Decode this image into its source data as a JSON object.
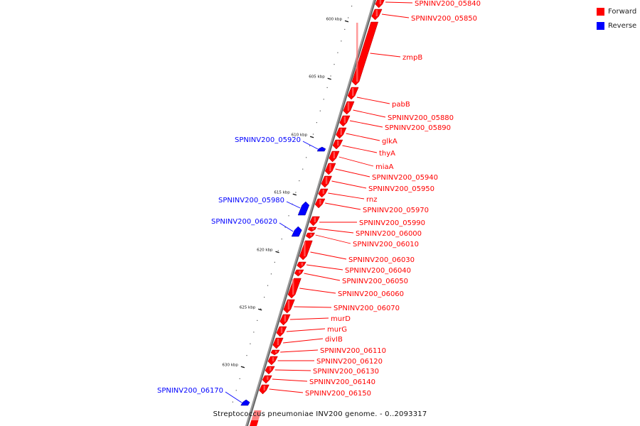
{
  "legend": {
    "forward": {
      "label": "Forward",
      "color": "#ff0000"
    },
    "reverse": {
      "label": "Reverse",
      "color": "#0000ff"
    }
  },
  "caption": "Streptococcus pneumoniae INV200 genome. - 0..2093317",
  "map": {
    "genome_name": "Streptococcus pneumoniae INV200",
    "tick_labels": [
      "600 kbp",
      "605 kbp",
      "610 kbp",
      "615 kbp",
      "620 kbp",
      "625 kbp",
      "630 kbp"
    ],
    "forward_features": [
      "SPNINV200_05840",
      "SPNINV200_05850",
      "zmpB",
      "pabB",
      "SPNINV200_05880",
      "SPNINV200_05890",
      "glkA",
      "thyA",
      "miaA",
      "SPNINV200_05940",
      "SPNINV200_05950",
      "rnz",
      "SPNINV200_05970",
      "SPNINV200_05990",
      "SPNINV200_06000",
      "SPNINV200_06010",
      "SPNINV200_06030",
      "SPNINV200_06040",
      "SPNINV200_06050",
      "SPNINV200_06060",
      "SPNINV200_06070",
      "murD",
      "murG",
      "divIB",
      "SPNINV200_06110",
      "SPNINV200_06120",
      "SPNINV200_06130",
      "SPNINV200_06140",
      "SPNINV200_06150"
    ],
    "reverse_features": [
      "SPNINV200_05920",
      "SPNINV200_05980",
      "SPNINV200_06020",
      "SPNINV200_06170"
    ]
  }
}
